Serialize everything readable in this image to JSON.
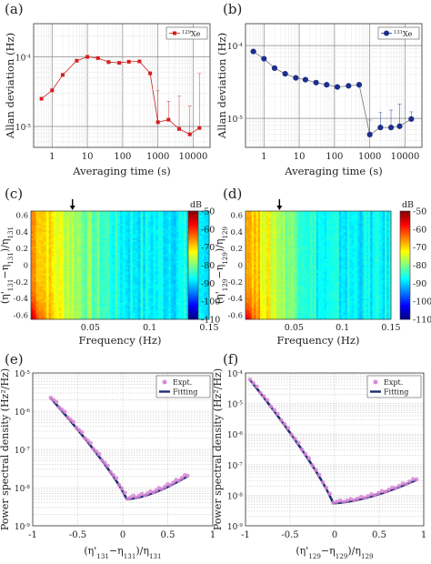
{
  "chart_data": [
    {
      "id": "a",
      "panel_label": "(a)",
      "type": "line",
      "scale": "log-log",
      "xlabel": "Averaging time (s)",
      "ylabel": "Allan deviation (Hz)",
      "legend": {
        "label_prefix": "129",
        "label_suffix": "Xe",
        "position": "top-right"
      },
      "color": "#d21f1f",
      "marker": "square",
      "xlim": [
        0.3,
        30000
      ],
      "ylim": [
        5e-06,
        0.0003
      ],
      "x_ticks": [
        {
          "v": 1,
          "t": "1"
        },
        {
          "v": 10,
          "t": "10"
        },
        {
          "v": 100,
          "t": "100"
        },
        {
          "v": 1000,
          "t": "1000"
        },
        {
          "v": 10000,
          "t": "10000"
        }
      ],
      "y_ticks": [
        {
          "v": 1e-05,
          "b": "10",
          "e": "-5"
        },
        {
          "v": 0.0001,
          "b": "10",
          "e": "-4"
        }
      ],
      "series": [
        {
          "x": [
            0.5,
            1,
            2,
            5,
            10,
            20,
            40,
            80,
            150,
            300,
            600,
            1000,
            2000,
            4000,
            8000,
            15000
          ],
          "y": [
            2.5e-05,
            3.3e-05,
            5.5e-05,
            8.8e-05,
            0.0001,
            9.6e-05,
            8.4e-05,
            8.2e-05,
            8.5e-05,
            8.6e-05,
            5.8e-05,
            1.15e-05,
            1.25e-05,
            9.2e-06,
            7.7e-06,
            9.5e-06
          ],
          "err_upper": [
            0,
            0,
            0,
            0,
            0,
            0,
            0,
            0,
            0,
            0,
            0,
            2.1e-05,
            1.05e-05,
            1.8e-05,
            1.2e-05,
            4.8e-05
          ]
        }
      ]
    },
    {
      "id": "b",
      "panel_label": "(b)",
      "type": "line",
      "scale": "log-log",
      "xlabel": "Averaging time (s)",
      "ylabel": "Allan deviation (Hz)",
      "legend": {
        "label_prefix": "131",
        "label_suffix": "Xe",
        "position": "top-right"
      },
      "color": "#1c2f8c",
      "marker": "circle",
      "xlim": [
        0.3,
        30000
      ],
      "ylim": [
        4e-06,
        0.0002
      ],
      "x_ticks": [
        {
          "v": 1,
          "t": "1"
        },
        {
          "v": 10,
          "t": "10"
        },
        {
          "v": 100,
          "t": "100"
        },
        {
          "v": 1000,
          "t": "1000"
        },
        {
          "v": 10000,
          "t": "10000"
        }
      ],
      "y_ticks": [
        {
          "v": 1e-05,
          "b": "10",
          "e": "-5"
        },
        {
          "v": 0.0001,
          "b": "10",
          "e": "-4"
        }
      ],
      "series": [
        {
          "x": [
            0.5,
            1,
            2,
            4,
            8,
            15,
            30,
            60,
            120,
            250,
            500,
            1000,
            2000,
            4000,
            7000,
            15000
          ],
          "y": [
            8.3e-05,
            6.6e-05,
            4.9e-05,
            4.1e-05,
            3.6e-05,
            3.4e-05,
            3.1e-05,
            2.9e-05,
            2.7e-05,
            2.8e-05,
            2.9e-05,
            6e-06,
            7.5e-06,
            7.5e-06,
            7.8e-06,
            9.8e-06
          ],
          "err_upper": [
            0,
            0,
            0,
            0,
            0,
            0,
            0,
            0,
            0,
            0,
            0,
            3.5e-06,
            4.5e-06,
            5.5e-06,
            8e-06,
            2.5e-06
          ]
        }
      ]
    },
    {
      "id": "c",
      "panel_label": "(c)",
      "type": "heatmap",
      "xlabel": "Frequency (Hz)",
      "ylabel_main": "(η'",
      "ylabel_parts": [
        "131",
        "−η",
        "131",
        ")/η",
        "131"
      ],
      "xlim": [
        0,
        0.15
      ],
      "ylim": [
        -0.65,
        0.65
      ],
      "x_ticks": [
        "0.05",
        "0.1",
        "0.15"
      ],
      "y_ticks": [
        "0.6",
        "0.4",
        "0.2",
        "0",
        "-0.2",
        "-0.4",
        "-0.6"
      ],
      "arrow_x": 0.035,
      "colorbar": {
        "unit": "dB",
        "ticks": [
          "-50",
          "-60",
          "-70",
          "-80",
          "-90",
          "-100",
          "-110"
        ],
        "range": [
          -110,
          -50
        ]
      }
    },
    {
      "id": "d",
      "panel_label": "(d)",
      "type": "heatmap",
      "xlabel": "Frequency (Hz)",
      "ylabel_main": "(η'",
      "ylabel_parts": [
        "129",
        "−η",
        "129",
        ")/η",
        "129"
      ],
      "xlim": [
        0,
        0.15
      ],
      "ylim": [
        -0.65,
        0.65
      ],
      "x_ticks": [
        "0.05",
        "0.1",
        "0.15"
      ],
      "y_ticks": [
        "0.6",
        "0.4",
        "0.2",
        "0",
        "-0.2",
        "-0.4",
        "-0.6"
      ],
      "arrow_x": 0.035,
      "colorbar": {
        "unit": "dB",
        "ticks": [
          "-50",
          "-60",
          "-70",
          "-80",
          "-90",
          "-100",
          "-110"
        ],
        "range": [
          -110,
          -50
        ]
      }
    },
    {
      "id": "e",
      "panel_label": "(e)",
      "type": "scatter",
      "scale": "semilog-y",
      "xlabel_parts": [
        "(η'",
        "131",
        "−η",
        "131",
        ")/η",
        "131"
      ],
      "ylabel": "Power spectral density (Hz²/Hz)",
      "xlim": [
        -1,
        1
      ],
      "ylim": [
        1e-09,
        1e-05
      ],
      "x_ticks": [
        {
          "v": -1,
          "t": "-1"
        },
        {
          "v": -0.5,
          "t": "-0.5"
        },
        {
          "v": 0,
          "t": "0"
        },
        {
          "v": 0.5,
          "t": "0.5"
        },
        {
          "v": 1,
          "t": "1"
        }
      ],
      "y_ticks": [
        {
          "v": 1e-09,
          "e": "-9"
        },
        {
          "v": 1e-08,
          "e": "-8"
        },
        {
          "v": 1e-07,
          "e": "-7"
        },
        {
          "v": 1e-06,
          "e": "-6"
        },
        {
          "v": 1e-05,
          "e": "-5"
        }
      ],
      "legend": {
        "expt": "Expt.",
        "fit": "Fitting",
        "position": "top-right"
      },
      "x_range": [
        -0.8,
        0.72
      ],
      "min_x": 0.04,
      "min_y": 5e-09,
      "left_y": 2.2e-06,
      "right_y": 2e-08
    },
    {
      "id": "f",
      "panel_label": "(f)",
      "type": "scatter",
      "scale": "semilog-y",
      "xlabel_parts": [
        "(η'",
        "129",
        "−η",
        "129",
        ")/η",
        "129"
      ],
      "ylabel": "Power spectral density (Hz²/Hz)",
      "xlim": [
        -1,
        1
      ],
      "ylim": [
        1e-09,
        0.0001
      ],
      "x_ticks": [
        {
          "v": -1,
          "t": "-1"
        },
        {
          "v": -0.5,
          "t": "-0.5"
        },
        {
          "v": 0,
          "t": "0"
        },
        {
          "v": 0.5,
          "t": "0.5"
        },
        {
          "v": 1,
          "t": "1"
        }
      ],
      "y_ticks": [
        {
          "v": 1e-09,
          "e": "-9"
        },
        {
          "v": 1e-08,
          "e": "-8"
        },
        {
          "v": 1e-07,
          "e": "-7"
        },
        {
          "v": 1e-06,
          "e": "-6"
        },
        {
          "v": 1e-05,
          "e": "-5"
        },
        {
          "v": 0.0001,
          "e": "-4"
        }
      ],
      "legend": {
        "expt": "Expt.",
        "fit": "Fitting",
        "position": "top-right"
      },
      "x_range": [
        -0.95,
        0.92
      ],
      "min_x": -0.02,
      "min_y": 5.5e-09,
      "left_y": 6e-05,
      "right_y": 3.2e-08
    }
  ]
}
